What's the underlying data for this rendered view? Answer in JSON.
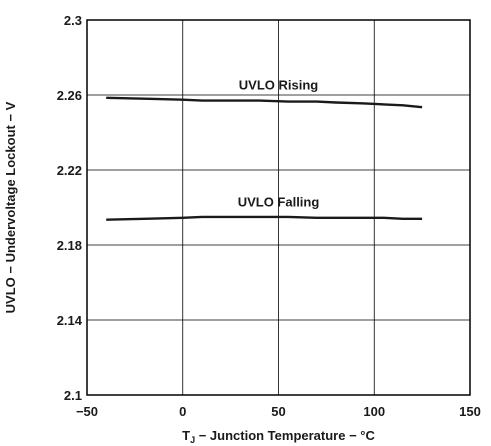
{
  "chart_data": {
    "type": "line",
    "title": "",
    "xlabel": "T_J − Junction Temperature − °C",
    "xlabel_main": "T",
    "xlabel_sub": "J",
    "xlabel_rest": " − Junction Temperature − °C",
    "ylabel": "UVLO − Undervoltage Lockout − V",
    "xlim": [
      -50,
      150
    ],
    "ylim": [
      2.1,
      2.3
    ],
    "x_ticks": [
      "−50",
      "0",
      "50",
      "100",
      "150"
    ],
    "y_ticks": [
      "2.1",
      "2.14",
      "2.18",
      "2.22",
      "2.26",
      "2.3"
    ],
    "grid": true,
    "series": [
      {
        "name": "UVLO Rising",
        "x": [
          -40,
          -20,
          0,
          10,
          25,
          40,
          55,
          70,
          80,
          95,
          105,
          115,
          125
        ],
        "y": [
          2.2585,
          2.258,
          2.2575,
          2.257,
          2.257,
          2.257,
          2.2565,
          2.2565,
          2.256,
          2.2555,
          2.255,
          2.2545,
          2.2535
        ]
      },
      {
        "name": "UVLO Falling",
        "x": [
          -40,
          -20,
          0,
          10,
          25,
          40,
          55,
          70,
          80,
          95,
          105,
          115,
          125
        ],
        "y": [
          2.1935,
          2.194,
          2.1945,
          2.195,
          2.195,
          2.195,
          2.195,
          2.1945,
          2.1945,
          2.1945,
          2.1945,
          2.194,
          2.194
        ]
      }
    ],
    "annotations": [
      {
        "text": "UVLO Rising",
        "x": 50,
        "y": 2.263
      },
      {
        "text": "UVLO Falling",
        "x": 50,
        "y": 2.2005
      }
    ],
    "colors": {
      "line": "#1a1a1a",
      "grid": "#000000",
      "frame": "#000000"
    }
  }
}
